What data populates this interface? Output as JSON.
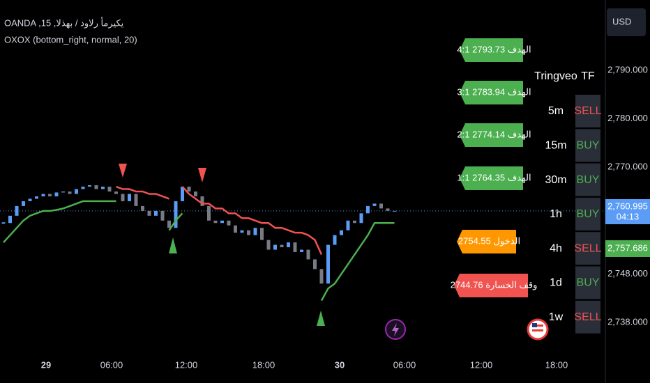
{
  "header": {
    "symbol": "OANDA ,15 ,يكيرمأ رلاود / بهذلا",
    "indicator": "OXOX (bottom_right, normal, 20)",
    "currency": "USD"
  },
  "chart_data": {
    "type": "candlestick",
    "closes": [
      2758.5,
      2760,
      2762,
      2763,
      2763.5,
      2764,
      2764.5,
      2764,
      2764.8,
      2765,
      2764.5,
      2765.5,
      2766,
      2766.3,
      2765.5,
      2766,
      2765,
      2764.5,
      2763,
      2764.5,
      2762,
      2761,
      2760,
      2761,
      2759,
      2757.5,
      2763,
      2766,
      2765,
      2764,
      2762,
      2759,
      2758.5,
      2759,
      2758,
      2756.5,
      2757,
      2756,
      2757.5,
      2755,
      2753,
      2754,
      2753.5,
      2754.5,
      2752.5,
      2753,
      2751,
      2749,
      2746,
      2754,
      2756,
      2757,
      2759,
      2758.5,
      2760.5,
      2762,
      2762.5,
      2761.5,
      2761,
      2761
    ],
    "up_color": "#5b9cf6",
    "down_color": "#787b86",
    "series": [
      {
        "color": "#4caf50",
        "values": [
          2754.5,
          2756,
          2757.5,
          2759,
          2760,
          2760.5,
          2761,
          2761,
          2761.2,
          2761.5,
          2762,
          2762.5,
          2763,
          2763,
          2763,
          2763,
          2763,
          2763,
          null,
          null,
          null,
          null,
          null,
          null,
          null,
          2757,
          2759,
          2760.5,
          null,
          null,
          null,
          null,
          null,
          null,
          null,
          null,
          null,
          null,
          null,
          null,
          null,
          null,
          null,
          null,
          null,
          null,
          null,
          null,
          2742.5,
          2745,
          2746,
          2748,
          2750,
          2752,
          2754,
          2756,
          2758.5,
          2758.5,
          2758.5,
          2758.5
        ]
      },
      {
        "color": "#f05350",
        "values": [
          null,
          null,
          null,
          null,
          null,
          null,
          null,
          null,
          null,
          null,
          null,
          null,
          null,
          null,
          null,
          null,
          null,
          2766,
          2765.5,
          2765.5,
          2765,
          2765,
          2764.5,
          2764.5,
          2764,
          2763.5,
          null,
          2766,
          2764.5,
          2763.5,
          2762.5,
          2762.5,
          2761.5,
          2761.5,
          2760.5,
          2760.5,
          2759.5,
          2759.5,
          2759,
          2758.5,
          2758.5,
          2757.5,
          2757.5,
          2757,
          2756.5,
          2756.5,
          2756,
          2755,
          2752,
          null,
          null,
          null,
          null,
          null,
          null,
          null,
          null,
          null,
          null,
          null
        ]
      }
    ],
    "ylim": [
      2731.24,
      2804.51
    ],
    "yticks": [
      {
        "value": 2790,
        "label": "2,790.000"
      },
      {
        "value": 2780,
        "label": "2,780.000"
      },
      {
        "value": 2770,
        "label": "2,770.000"
      },
      {
        "value": 2748,
        "label": "2,748.000"
      },
      {
        "value": 2738,
        "label": "2,738.000"
      }
    ],
    "last_price": {
      "value": 2760.995,
      "label": "2,760.995"
    },
    "countdown": "04:13",
    "line_price": {
      "value": 2757.686,
      "label": "2,757.686"
    },
    "x_labels": [
      "29",
      "06:00",
      "12:00",
      "18:00",
      "30",
      "06:00",
      "12:00",
      "18:00"
    ]
  },
  "labels": {
    "targets": [
      "الهدف 2793.73 4:1",
      "الهدف 2783.94 3:1",
      "الهدف 2774.14 2:1",
      "الهدف 2764.35 1:1"
    ],
    "entry": "الدخول 2754.55",
    "stop": "وقف الخسارة 2744.76"
  },
  "table": {
    "headers": [
      "Tringveo",
      "TF"
    ],
    "rows": [
      [
        "5m",
        "SELL"
      ],
      [
        "15m",
        "BUY"
      ],
      [
        "30m",
        "BUY"
      ],
      [
        "1h",
        "BUY"
      ],
      [
        "4h",
        "SELL"
      ],
      [
        "1d",
        "BUY"
      ],
      [
        "1w",
        "SELL"
      ]
    ]
  }
}
